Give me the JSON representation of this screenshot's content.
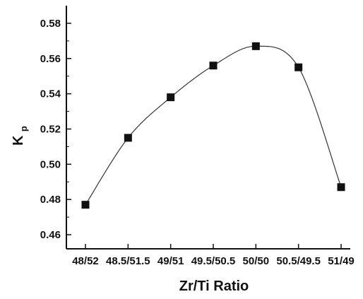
{
  "chart_data": {
    "type": "scatter",
    "title": "",
    "xlabel": "Zr/Ti  Ratio",
    "ylabel_main": "K",
    "ylabel_sub": "p",
    "categories": [
      "48/52",
      "48.5/51.5",
      "49/51",
      "49.5/50.5",
      "50/50",
      "50.5/49.5",
      "51/49"
    ],
    "values": [
      0.477,
      0.515,
      0.538,
      0.556,
      0.567,
      0.555,
      0.487
    ],
    "ylim": [
      0.452,
      0.59
    ],
    "yticks": [
      0.46,
      0.48,
      0.5,
      0.52,
      0.54,
      0.56,
      0.58
    ],
    "ytick_labels": [
      "0.46",
      "0.48",
      "0.50",
      "0.52",
      "0.54",
      "0.56",
      "0.58"
    ],
    "fitted_curve": true,
    "marker": "filled-square",
    "grid": false,
    "legend": "none",
    "colors": {
      "axis": "#111111",
      "marker": "#111111",
      "curve": "#333333"
    }
  }
}
